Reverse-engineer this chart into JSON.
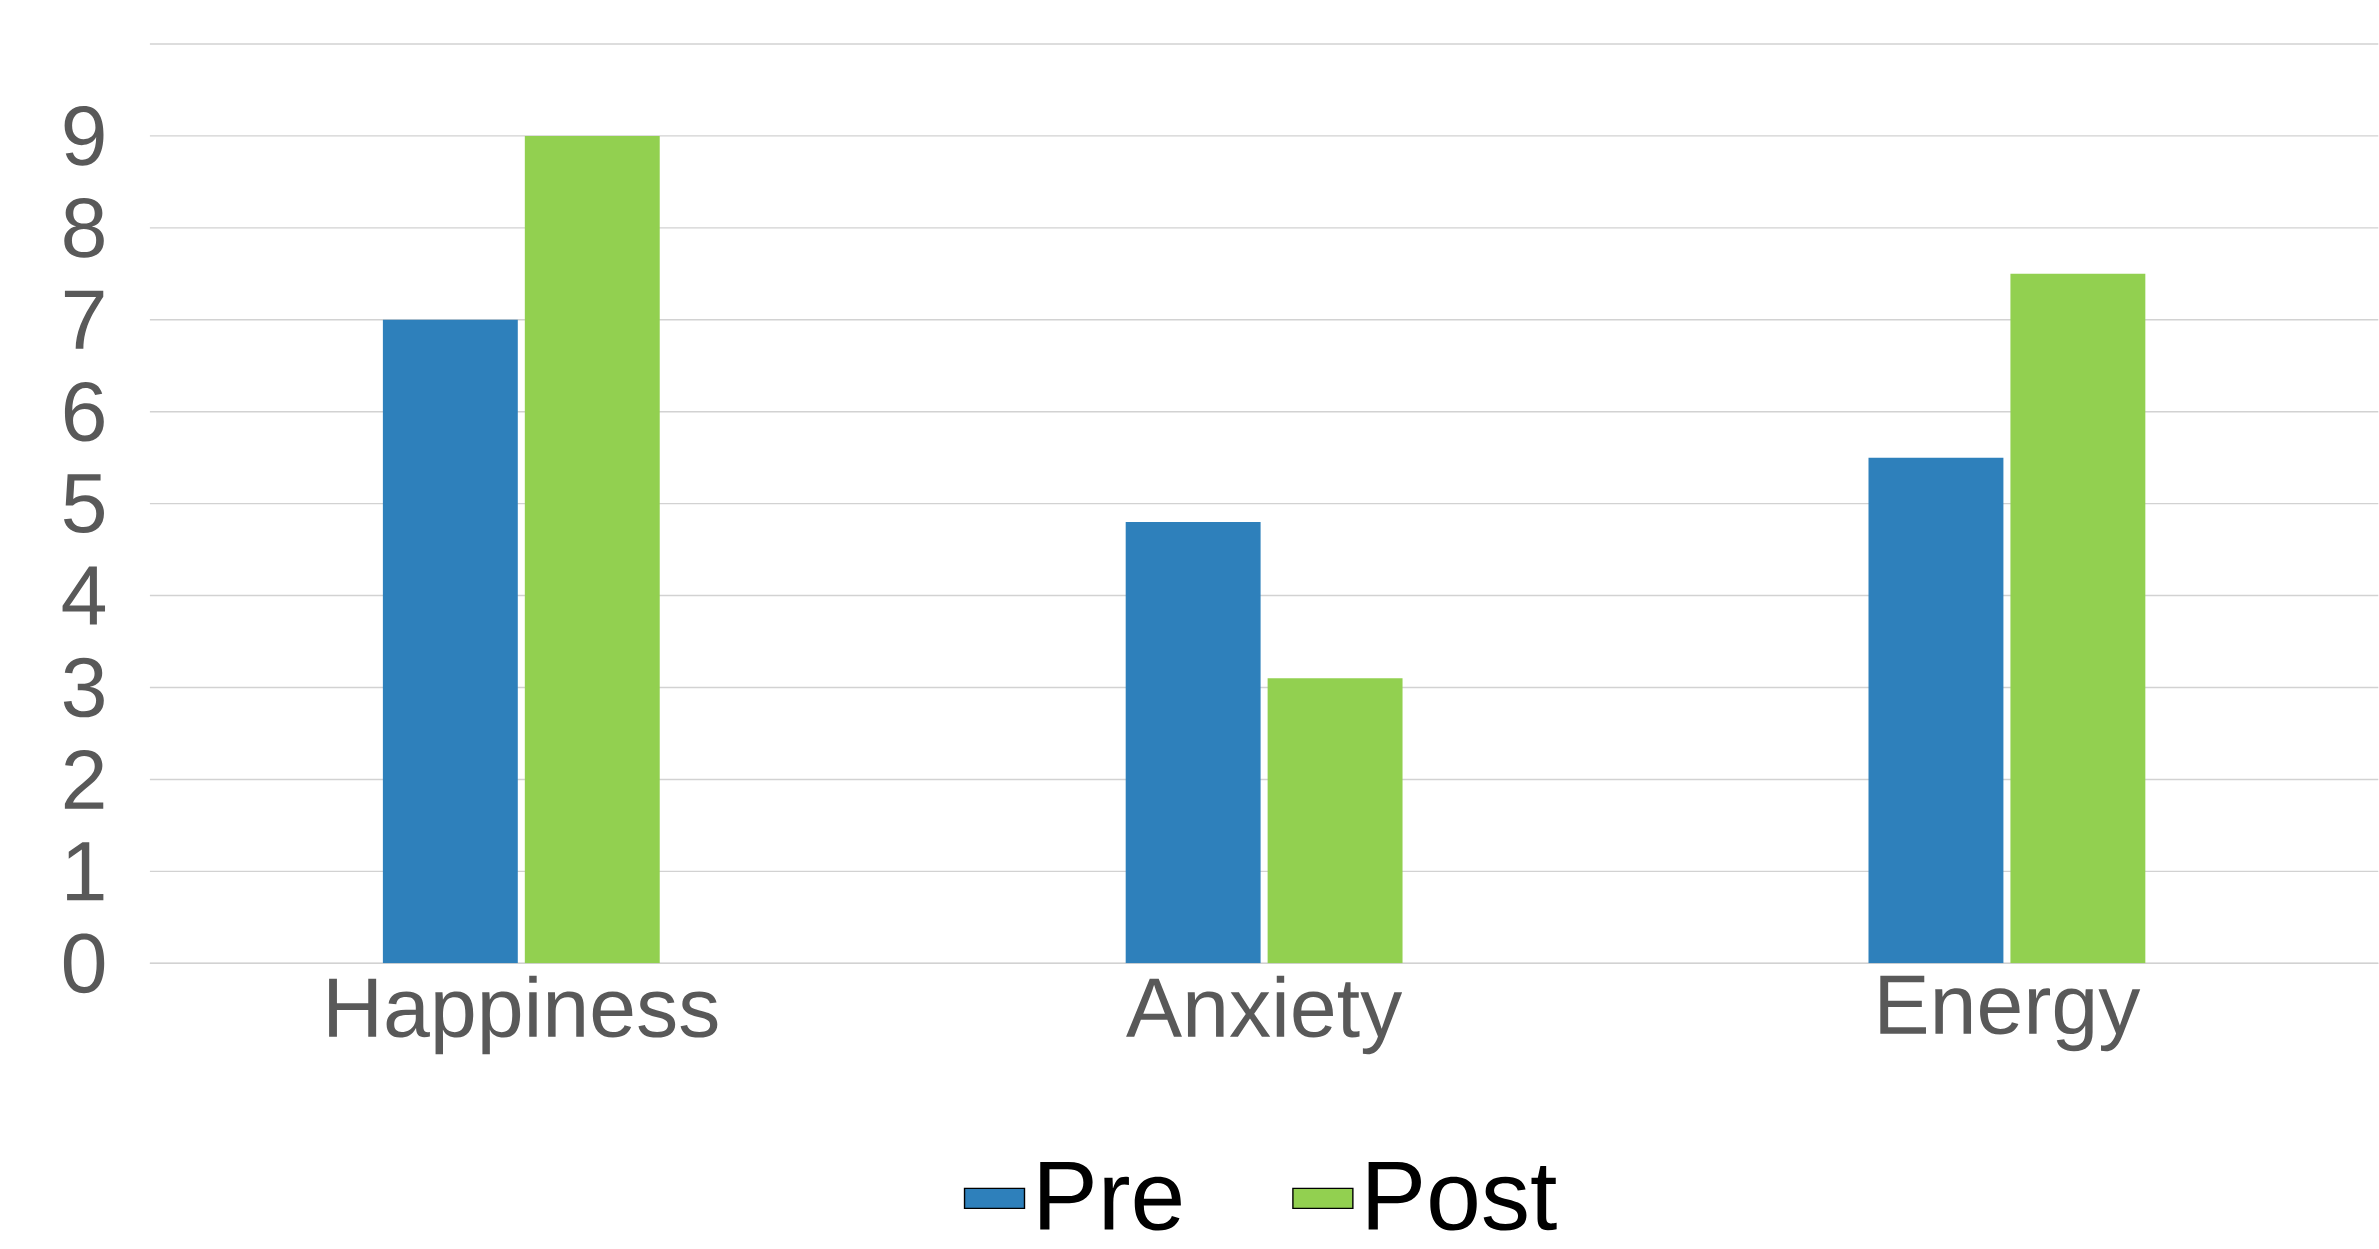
{
  "chart_data": {
    "type": "bar",
    "categories": [
      "Happiness",
      "Anxiety",
      "Energy"
    ],
    "series": [
      {
        "name": "Pre",
        "color": "#2e80bb",
        "values": [
          7,
          4.8,
          5.5
        ]
      },
      {
        "name": "Post",
        "color": "#92d050",
        "values": [
          9,
          3.1,
          7.5
        ]
      }
    ],
    "ylim": [
      0,
      10
    ],
    "yticks": [
      0,
      1,
      2,
      3,
      4,
      5,
      6,
      7,
      8,
      9,
      {
        "value": 10,
        "label": null
      }
    ],
    "grid": "y",
    "legend": "bottom"
  }
}
